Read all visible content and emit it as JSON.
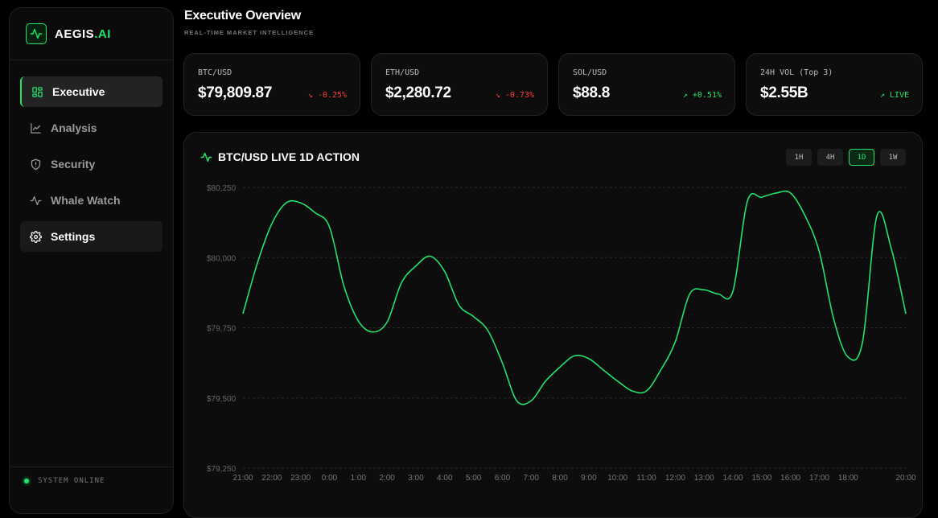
{
  "brand": {
    "name": "AEGIS",
    "suffix": ".AI",
    "logo_icon": "activity-icon"
  },
  "sidebar": {
    "items": [
      {
        "label": "Executive",
        "icon": "grid-icon",
        "state": "active"
      },
      {
        "label": "Analysis",
        "icon": "chart-line-icon",
        "state": ""
      },
      {
        "label": "Security",
        "icon": "shield-icon",
        "state": ""
      },
      {
        "label": "Whale Watch",
        "icon": "pulse-icon",
        "state": ""
      },
      {
        "label": "Settings",
        "icon": "gear-icon",
        "state": "hover"
      }
    ],
    "status": "SYSTEM ONLINE"
  },
  "header": {
    "title": "Executive Overview",
    "subtitle": "REAL-TIME MARKET INTELLIGENCE"
  },
  "cards": [
    {
      "label": "BTC/USD",
      "value": "$79,809.87",
      "change": "-0.25%",
      "direction": "down"
    },
    {
      "label": "ETH/USD",
      "value": "$2,280.72",
      "change": "-0.73%",
      "direction": "down"
    },
    {
      "label": "SOL/USD",
      "value": "$88.8",
      "change": "+0.51%",
      "direction": "up"
    },
    {
      "label": "24H VOL (Top 3)",
      "value": "$2.55B",
      "change": "LIVE",
      "direction": "up"
    }
  ],
  "chart": {
    "title": "BTC/USD LIVE 1D ACTION",
    "timeframes": [
      "1H",
      "4H",
      "1D",
      "1W"
    ],
    "active_timeframe": "1D"
  },
  "colors": {
    "accent": "#22e36b",
    "negative": "#ff3b3b",
    "background": "#000000",
    "panel": "#0d0d0d"
  },
  "chart_data": {
    "type": "line",
    "title": "BTC/USD LIVE 1D ACTION",
    "xlabel": "",
    "ylabel": "",
    "ylim": [
      79250,
      80250
    ],
    "yticks": [
      "$80,250",
      "$80,000",
      "$79,750",
      "$79,500",
      "$79,250"
    ],
    "ytick_values": [
      80250,
      80000,
      79750,
      79500,
      79250
    ],
    "xticks": [
      "21:00",
      "22:00",
      "23:00",
      "0:00",
      "1:00",
      "2:00",
      "3:00",
      "4:00",
      "5:00",
      "6:00",
      "7:00",
      "8:00",
      "9:00",
      "10:00",
      "11:00",
      "12:00",
      "13:00",
      "14:00",
      "15:00",
      "16:00",
      "17:00",
      "18:00",
      "20:00"
    ],
    "xtick_positions": [
      0,
      1,
      2,
      3,
      4,
      5,
      6,
      7,
      8,
      9,
      10,
      11,
      12,
      13,
      14,
      15,
      16,
      17,
      18,
      19,
      20,
      21,
      23
    ],
    "grid": true,
    "series": [
      {
        "color": "#22e36b",
        "x": [
          0,
          0.5,
          1,
          1.5,
          2,
          2.5,
          3,
          3.5,
          4,
          4.5,
          5,
          5.5,
          6,
          6.5,
          7,
          7.5,
          8,
          8.5,
          9,
          9.5,
          10,
          10.5,
          11,
          11.5,
          12,
          12.5,
          13,
          13.5,
          14,
          14.5,
          15,
          15.5,
          16,
          16.5,
          17,
          17.5,
          18,
          18.5,
          19,
          19.5,
          20,
          20.5,
          21,
          21.5,
          22,
          22.5,
          23
        ],
        "y": [
          79800,
          79980,
          80120,
          80195,
          80195,
          80160,
          80110,
          79900,
          79775,
          79735,
          79770,
          79910,
          79970,
          80005,
          79950,
          79830,
          79790,
          79740,
          79625,
          79490,
          79490,
          79560,
          79610,
          79650,
          79640,
          79600,
          79560,
          79525,
          79525,
          79600,
          79700,
          79870,
          79885,
          79870,
          79880,
          80200,
          80215,
          80230,
          80230,
          80150,
          80020,
          79780,
          79645,
          79700,
          80150,
          80030,
          79800
        ]
      }
    ]
  }
}
